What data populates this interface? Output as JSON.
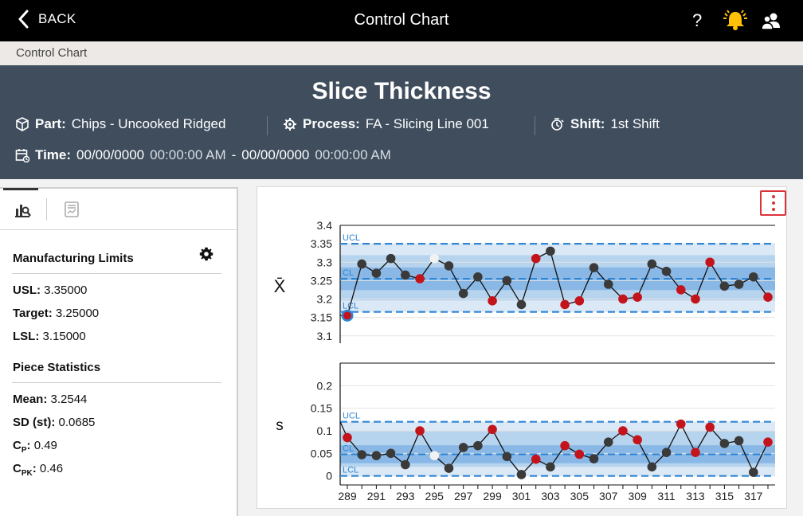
{
  "topbar": {
    "back_label": "BACK",
    "title": "Control Chart",
    "help_label": "?"
  },
  "breadcrumb": {
    "label": "Control Chart"
  },
  "header": {
    "title": "Slice Thickness",
    "part_label": "Part:",
    "part_value": "Chips - Uncooked Ridged",
    "process_label": "Process:",
    "process_value": "FA - Slicing Line 001",
    "shift_label": "Shift:",
    "shift_value": "1st Shift",
    "time_label": "Time:",
    "time_start_date": "00/00/0000",
    "time_start_clock": "00:00:00 AM",
    "time_sep": "-",
    "time_end_date": "00/00/0000",
    "time_end_clock": "00:00:00 AM"
  },
  "left_panel": {
    "manufacturing_limits_title": "Manufacturing Limits",
    "usl_label": "USL:",
    "usl_value": "3.35000",
    "target_label": "Target:",
    "target_value": "3.25000",
    "lsl_label": "LSL:",
    "lsl_value": "3.15000",
    "piece_stats_title": "Piece Statistics",
    "mean_label": "Mean:",
    "mean_value": "3.2544",
    "sd_label": "SD (st):",
    "sd_value": "0.0685",
    "cp_label_main": "C",
    "cp_label_sub": "P",
    "cp_label_colon": ":",
    "cp_value": "0.49",
    "cpk_label_main": "C",
    "cpk_label_sub": "PK",
    "cpk_label_colon": ":",
    "cpk_value": "0.46"
  },
  "colors": {
    "accent_blue": "#2f86d6",
    "out_of_control": "#c4141b",
    "normal_point": "#3a3a3a",
    "excluded_point": "#f2f2f2",
    "header_bg": "#3f4d5d",
    "bell": "#ffc107"
  },
  "chart_data": [
    {
      "type": "line",
      "name": "xbar",
      "ylabel": "X̄",
      "ylim": [
        3.08,
        3.4
      ],
      "yticks": [
        3.1,
        3.15,
        3.2,
        3.25,
        3.3,
        3.35,
        3.4
      ],
      "ytick_labels": [
        "3.1",
        "3.15",
        "3.2",
        "3.25",
        "3.3",
        "3.35",
        "3.4"
      ],
      "limits": {
        "ucl": 3.35,
        "cl": 3.255,
        "lcl": 3.165,
        "ucl_label": "UCL",
        "cl_label": "CL",
        "lcl_label": "LCL"
      },
      "x": [
        289,
        290,
        291,
        292,
        293,
        294,
        295,
        296,
        297,
        298,
        299,
        300,
        301,
        302,
        303,
        304,
        305,
        306,
        307,
        308,
        309,
        310,
        311,
        312,
        313,
        314,
        315,
        316,
        317,
        318
      ],
      "values": [
        3.155,
        3.295,
        3.27,
        3.31,
        3.265,
        3.255,
        3.31,
        3.29,
        3.215,
        3.26,
        3.195,
        3.25,
        3.185,
        3.31,
        3.33,
        3.185,
        3.195,
        3.285,
        3.24,
        3.2,
        3.205,
        3.295,
        3.275,
        3.225,
        3.2,
        3.3,
        3.235,
        3.24,
        3.26,
        3.205
      ],
      "point_status": [
        "highlight",
        "normal",
        "normal",
        "normal",
        "normal",
        "flag",
        "excluded",
        "normal",
        "normal",
        "normal",
        "flag",
        "normal",
        "normal",
        "flag",
        "normal",
        "flag",
        "flag",
        "normal",
        "normal",
        "flag",
        "flag",
        "normal",
        "normal",
        "flag",
        "flag",
        "flag",
        "normal",
        "normal",
        "normal",
        "flag"
      ]
    },
    {
      "type": "line",
      "name": "s",
      "ylabel": "s",
      "ylim": [
        -0.02,
        0.25
      ],
      "yticks": [
        0,
        0.05,
        0.1,
        0.15,
        0.2
      ],
      "ytick_labels": [
        "0",
        "0.05",
        "0.1",
        "0.15",
        "0.2"
      ],
      "limits": {
        "ucl": 0.12,
        "cl": 0.048,
        "lcl": 0.0,
        "ucl_label": "UCL",
        "cl_label": "CL",
        "lcl_label": "LCL"
      },
      "x": [
        289,
        290,
        291,
        292,
        293,
        294,
        295,
        296,
        297,
        298,
        299,
        300,
        301,
        302,
        303,
        304,
        305,
        306,
        307,
        308,
        309,
        310,
        311,
        312,
        313,
        314,
        315,
        316,
        317,
        318
      ],
      "x_tick_labels": [
        "289",
        "291",
        "293",
        "295",
        "297",
        "299",
        "301",
        "303",
        "305",
        "307",
        "309",
        "311",
        "313",
        "315",
        "317"
      ],
      "values": [
        0.085,
        0.047,
        0.045,
        0.05,
        0.025,
        0.1,
        0.045,
        0.017,
        0.063,
        0.067,
        0.103,
        0.043,
        0.003,
        0.037,
        0.02,
        0.067,
        0.048,
        0.038,
        0.075,
        0.1,
        0.08,
        0.02,
        0.052,
        0.115,
        0.052,
        0.108,
        0.072,
        0.078,
        0.008,
        0.075
      ],
      "point_status": [
        "flag",
        "normal",
        "normal",
        "normal",
        "normal",
        "flag",
        "excluded",
        "normal",
        "normal",
        "normal",
        "flag",
        "normal",
        "normal",
        "flag",
        "normal",
        "flag",
        "flag",
        "normal",
        "normal",
        "flag",
        "flag",
        "normal",
        "normal",
        "flag",
        "flag",
        "flag",
        "normal",
        "normal",
        "normal",
        "flag"
      ]
    }
  ]
}
